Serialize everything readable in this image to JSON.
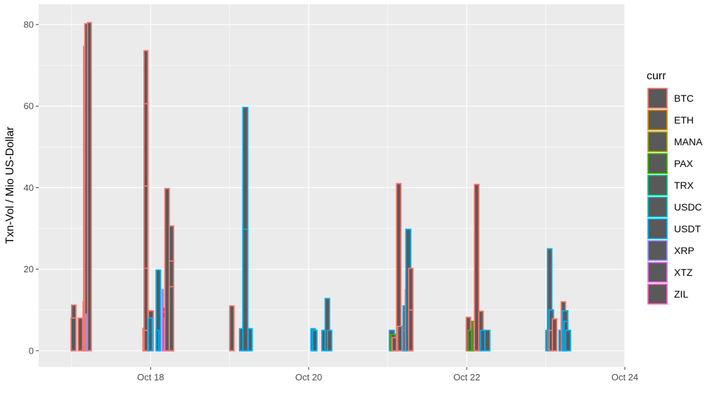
{
  "chart_data": {
    "type": "bar",
    "title": "",
    "xlabel": "",
    "ylabel": "Txn-Vol / Mio US-Dollar",
    "xlim": [
      "2019-10-16T14:00",
      "2019-10-24T00:00"
    ],
    "ylim": [
      -4,
      85
    ],
    "x_ticks": [
      {
        "date": "2019-10-18",
        "label": "Oct 18"
      },
      {
        "date": "2019-10-20",
        "label": "Oct 20"
      },
      {
        "date": "2019-10-22",
        "label": "Oct 22"
      },
      {
        "date": "2019-10-24",
        "label": "Oct 24"
      }
    ],
    "y_ticks": [
      0,
      20,
      40,
      60,
      80
    ],
    "grid": true,
    "bar_fill": "#595959",
    "legend": {
      "title": "curr",
      "position": "right",
      "items": [
        {
          "label": "BTC",
          "color": "#F8766D"
        },
        {
          "label": "ETH",
          "color": "#D89000"
        },
        {
          "label": "MANA",
          "color": "#A3A500"
        },
        {
          "label": "PAX",
          "color": "#39B600"
        },
        {
          "label": "TRX",
          "color": "#00BF7D"
        },
        {
          "label": "USDC",
          "color": "#00BFC4"
        },
        {
          "label": "USDT",
          "color": "#00B0F6"
        },
        {
          "label": "XRP",
          "color": "#9590FF"
        },
        {
          "label": "XTZ",
          "color": "#E76BF3"
        },
        {
          "label": "ZIL",
          "color": "#FF62BC"
        }
      ]
    },
    "bars": [
      {
        "start": "2019-10-17T00:00",
        "end": "2019-10-17T01:20",
        "ymin": 0,
        "ymax": 11.2,
        "curr": "BTC"
      },
      {
        "start": "2019-10-16T23:50",
        "end": "2019-10-17T01:20",
        "ymin": 0,
        "ymax": 8.0,
        "curr": "BTC"
      },
      {
        "start": "2019-10-17T02:00",
        "end": "2019-10-17T03:20",
        "ymin": 0,
        "ymax": 8.0,
        "curr": "BTC"
      },
      {
        "start": "2019-10-17T03:30",
        "end": "2019-10-17T03:50",
        "ymin": 0,
        "ymax": 12.0,
        "curr": "BTC"
      },
      {
        "start": "2019-10-17T03:40",
        "end": "2019-10-17T04:10",
        "ymin": 0,
        "ymax": 74.6,
        "curr": "BTC"
      },
      {
        "start": "2019-10-17T04:00",
        "end": "2019-10-17T05:00",
        "ymin": 0,
        "ymax": 80.2,
        "curr": "BTC"
      },
      {
        "start": "2019-10-17T04:20",
        "end": "2019-10-17T04:40",
        "ymin": 0,
        "ymax": 9.0,
        "curr": "XRP"
      },
      {
        "start": "2019-10-17T04:50",
        "end": "2019-10-17T06:00",
        "ymin": 0,
        "ymax": 80.5,
        "curr": "BTC"
      },
      {
        "start": "2019-10-17T21:40",
        "end": "2019-10-17T22:00",
        "ymin": 0,
        "ymax": 5.5,
        "curr": "BTC"
      },
      {
        "start": "2019-10-17T22:00",
        "end": "2019-10-17T23:10",
        "ymin": 0,
        "ymax": 73.6,
        "curr": "BTC"
      },
      {
        "start": "2019-10-17T22:00",
        "end": "2019-10-17T23:10",
        "ymin": 0,
        "ymax": 60.6,
        "curr": "BTC"
      },
      {
        "start": "2019-10-17T22:00",
        "end": "2019-10-17T23:10",
        "ymin": 0,
        "ymax": 40.4,
        "curr": "BTC"
      },
      {
        "start": "2019-10-17T22:00",
        "end": "2019-10-17T23:10",
        "ymin": 0,
        "ymax": 20.2,
        "curr": "BTC"
      },
      {
        "start": "2019-10-17T22:00",
        "end": "2019-10-17T23:10",
        "ymin": 0,
        "ymax": 5.0,
        "curr": "BTC"
      },
      {
        "start": "2019-10-17T23:20",
        "end": "2019-10-18T00:50",
        "ymin": 0,
        "ymax": 9.8,
        "curr": "BTC"
      },
      {
        "start": "2019-10-17T23:20",
        "end": "2019-10-18T00:30",
        "ymin": 0,
        "ymax": 8.0,
        "curr": "USDT"
      },
      {
        "start": "2019-10-18T01:40",
        "end": "2019-10-18T03:00",
        "ymin": 0,
        "ymax": 19.8,
        "curr": "USDT"
      },
      {
        "start": "2019-10-18T01:40",
        "end": "2019-10-18T02:30",
        "ymin": 0,
        "ymax": 5.0,
        "curr": "USDT"
      },
      {
        "start": "2019-10-18T03:30",
        "end": "2019-10-18T03:50",
        "ymin": 0,
        "ymax": 15.0,
        "curr": "XRP"
      },
      {
        "start": "2019-10-18T03:40",
        "end": "2019-10-18T05:20",
        "ymin": 0,
        "ymax": 10.6,
        "curr": "XTZ"
      },
      {
        "start": "2019-10-18T03:40",
        "end": "2019-10-18T05:20",
        "ymin": 0,
        "ymax": 9.5,
        "curr": "XTZ"
      },
      {
        "start": "2019-10-18T04:10",
        "end": "2019-10-18T05:10",
        "ymin": 0,
        "ymax": 8.0,
        "curr": "XRP"
      },
      {
        "start": "2019-10-18T04:20",
        "end": "2019-10-18T05:40",
        "ymin": 0,
        "ymax": 39.8,
        "curr": "BTC"
      },
      {
        "start": "2019-10-18T05:40",
        "end": "2019-10-18T07:00",
        "ymin": 0,
        "ymax": 30.6,
        "curr": "BTC"
      },
      {
        "start": "2019-10-18T05:40",
        "end": "2019-10-18T07:00",
        "ymin": 0,
        "ymax": 22.0,
        "curr": "BTC"
      },
      {
        "start": "2019-10-18T05:40",
        "end": "2019-10-18T07:00",
        "ymin": 0,
        "ymax": 15.7,
        "curr": "BTC"
      },
      {
        "start": "2019-10-19T00:00",
        "end": "2019-10-19T01:20",
        "ymin": 0,
        "ymax": 11.0,
        "curr": "BTC"
      },
      {
        "start": "2019-10-19T03:00",
        "end": "2019-10-19T04:10",
        "ymin": 0,
        "ymax": 5.4,
        "curr": "USDT"
      },
      {
        "start": "2019-10-19T04:00",
        "end": "2019-10-19T05:30",
        "ymin": 0,
        "ymax": 59.7,
        "curr": "USDT"
      },
      {
        "start": "2019-10-19T04:00",
        "end": "2019-10-19T05:30",
        "ymin": 0,
        "ymax": 29.8,
        "curr": "USDT"
      },
      {
        "start": "2019-10-19T05:40",
        "end": "2019-10-19T06:50",
        "ymin": 0,
        "ymax": 5.4,
        "curr": "USDT"
      },
      {
        "start": "2019-10-20T00:40",
        "end": "2019-10-20T02:00",
        "ymin": 0,
        "ymax": 5.4,
        "curr": "USDT"
      },
      {
        "start": "2019-10-20T01:10",
        "end": "2019-10-20T02:30",
        "ymin": 0,
        "ymax": 5.0,
        "curr": "USDT"
      },
      {
        "start": "2019-10-20T04:00",
        "end": "2019-10-20T05:00",
        "ymin": 0,
        "ymax": 5.0,
        "curr": "USDT"
      },
      {
        "start": "2019-10-20T05:00",
        "end": "2019-10-20T06:20",
        "ymin": 0,
        "ymax": 12.8,
        "curr": "USDT"
      },
      {
        "start": "2019-10-20T05:40",
        "end": "2019-10-20T07:00",
        "ymin": 0,
        "ymax": 5.0,
        "curr": "USDT"
      },
      {
        "start": "2019-10-21T00:30",
        "end": "2019-10-21T02:00",
        "ymin": 0,
        "ymax": 5.0,
        "curr": "USDT"
      },
      {
        "start": "2019-10-21T01:00",
        "end": "2019-10-21T02:20",
        "ymin": 0,
        "ymax": 4.0,
        "curr": "PAX"
      },
      {
        "start": "2019-10-21T01:20",
        "end": "2019-10-21T02:40",
        "ymin": 0,
        "ymax": 3.2,
        "curr": "BTC"
      },
      {
        "start": "2019-10-21T02:40",
        "end": "2019-10-21T04:00",
        "ymin": 0,
        "ymax": 41.0,
        "curr": "BTC"
      },
      {
        "start": "2019-10-21T03:00",
        "end": "2019-10-21T04:20",
        "ymin": 0,
        "ymax": 6.0,
        "curr": "BTC"
      },
      {
        "start": "2019-10-21T04:40",
        "end": "2019-10-21T05:50",
        "ymin": 0,
        "ymax": 11.0,
        "curr": "USDT"
      },
      {
        "start": "2019-10-21T04:40",
        "end": "2019-10-21T05:20",
        "ymin": 0,
        "ymax": 10.0,
        "curr": "USDT"
      },
      {
        "start": "2019-10-21T04:40",
        "end": "2019-10-21T05:20",
        "ymin": 0,
        "ymax": 5.0,
        "curr": "USDT"
      },
      {
        "start": "2019-10-21T05:20",
        "end": "2019-10-21T06:20",
        "ymin": 0,
        "ymax": 15.0,
        "curr": "BTC"
      },
      {
        "start": "2019-10-21T05:30",
        "end": "2019-10-21T07:00",
        "ymin": 0,
        "ymax": 29.8,
        "curr": "USDT"
      },
      {
        "start": "2019-10-21T06:20",
        "end": "2019-10-21T07:40",
        "ymin": 0,
        "ymax": 20.2,
        "curr": "BTC"
      },
      {
        "start": "2019-10-21T06:20",
        "end": "2019-10-21T07:40",
        "ymin": 0,
        "ymax": 10.0,
        "curr": "BTC"
      },
      {
        "start": "2019-10-21T23:50",
        "end": "2019-10-22T01:10",
        "ymin": 0,
        "ymax": 8.2,
        "curr": "BTC"
      },
      {
        "start": "2019-10-22T00:20",
        "end": "2019-10-22T01:40",
        "ymin": 0,
        "ymax": 5.0,
        "curr": "PAX"
      },
      {
        "start": "2019-10-22T01:30",
        "end": "2019-10-22T02:00",
        "ymin": 0,
        "ymax": 7.2,
        "curr": "PAX"
      },
      {
        "start": "2019-10-22T02:10",
        "end": "2019-10-22T03:30",
        "ymin": 0,
        "ymax": 6.8,
        "curr": "BTC"
      },
      {
        "start": "2019-10-22T02:10",
        "end": "2019-10-22T03:20",
        "ymin": 0,
        "ymax": 5.0,
        "curr": "USDT"
      },
      {
        "start": "2019-10-22T02:20",
        "end": "2019-10-22T03:40",
        "ymin": 0,
        "ymax": 40.8,
        "curr": "BTC"
      },
      {
        "start": "2019-10-22T03:40",
        "end": "2019-10-22T05:00",
        "ymin": 0,
        "ymax": 9.7,
        "curr": "BTC"
      },
      {
        "start": "2019-10-22T04:10",
        "end": "2019-10-22T05:30",
        "ymin": 0,
        "ymax": 5.0,
        "curr": "USDT"
      },
      {
        "start": "2019-10-22T05:30",
        "end": "2019-10-22T07:00",
        "ymin": 0,
        "ymax": 5.0,
        "curr": "USDT"
      },
      {
        "start": "2019-10-23T00:00",
        "end": "2019-10-23T01:20",
        "ymin": 0,
        "ymax": 5.0,
        "curr": "USDT"
      },
      {
        "start": "2019-10-23T00:30",
        "end": "2019-10-23T01:50",
        "ymin": 0,
        "ymax": 25.0,
        "curr": "USDT"
      },
      {
        "start": "2019-10-23T01:00",
        "end": "2019-10-23T02:20",
        "ymin": 0,
        "ymax": 10.0,
        "curr": "USDT"
      },
      {
        "start": "2019-10-23T01:00",
        "end": "2019-10-23T02:00",
        "ymin": 0,
        "ymax": 5.0,
        "curr": "BTC"
      },
      {
        "start": "2019-10-23T02:00",
        "end": "2019-10-23T03:20",
        "ymin": 0,
        "ymax": 7.8,
        "curr": "BTC"
      },
      {
        "start": "2019-10-23T04:00",
        "end": "2019-10-23T04:40",
        "ymin": 0,
        "ymax": 5.0,
        "curr": "USDT"
      },
      {
        "start": "2019-10-23T04:40",
        "end": "2019-10-23T06:00",
        "ymin": 0,
        "ymax": 12.0,
        "curr": "BTC"
      },
      {
        "start": "2019-10-23T05:00",
        "end": "2019-10-23T06:40",
        "ymin": 0,
        "ymax": 9.8,
        "curr": "USDT"
      },
      {
        "start": "2019-10-23T05:30",
        "end": "2019-10-23T06:40",
        "ymin": 0,
        "ymax": 7.2,
        "curr": "USDT"
      },
      {
        "start": "2019-10-23T06:00",
        "end": "2019-10-23T07:30",
        "ymin": 0,
        "ymax": 5.0,
        "curr": "USDT"
      }
    ]
  }
}
